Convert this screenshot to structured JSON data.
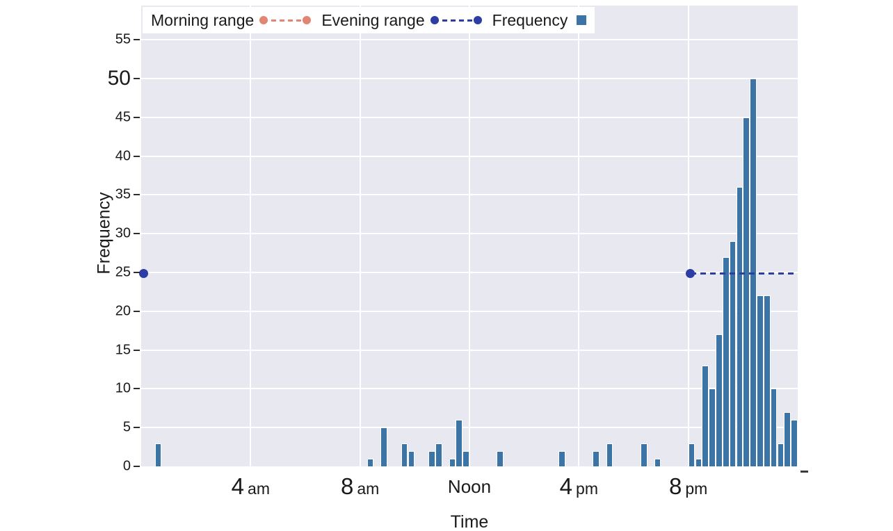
{
  "colors": {
    "figure_background": "#ffffff",
    "plot_background": "#e8e8f1",
    "grid": "#ffffff",
    "bar": "#3c74a6",
    "bar_edge": "#ffffff",
    "evening_range": "#2c3ea3",
    "morning_range": "#e28572",
    "text": "#1a1a1a"
  },
  "chart_data": {
    "type": "bar",
    "title": "",
    "xlabel": "Time",
    "ylabel": "Frequency",
    "grid": true,
    "legend_position": "top-left",
    "xlim_hours": [
      0,
      24
    ],
    "ylim": [
      0,
      59.4
    ],
    "bin_width_hours": 0.25,
    "y_ticks": [
      0,
      5,
      10,
      15,
      20,
      25,
      30,
      35,
      40,
      45,
      50,
      55
    ],
    "y_tick_emphasized": 50,
    "x_ticks": [
      {
        "hour": 4,
        "text": "4",
        "suffix": "am"
      },
      {
        "hour": 8,
        "text": "8",
        "suffix": "am"
      },
      {
        "hour": 12,
        "text": "Noon",
        "suffix": ""
      },
      {
        "hour": 16,
        "text": "4",
        "suffix": "pm"
      },
      {
        "hour": 20,
        "text": "8",
        "suffix": "pm"
      }
    ],
    "bars": [
      {
        "time": "00:30",
        "hour": 0.5,
        "value": 3
      },
      {
        "time": "08:15",
        "hour": 8.25,
        "value": 1
      },
      {
        "time": "08:45",
        "hour": 8.75,
        "value": 5
      },
      {
        "time": "09:30",
        "hour": 9.5,
        "value": 3
      },
      {
        "time": "09:45",
        "hour": 9.75,
        "value": 2
      },
      {
        "time": "10:30",
        "hour": 10.5,
        "value": 2
      },
      {
        "time": "10:45",
        "hour": 10.75,
        "value": 3
      },
      {
        "time": "11:15",
        "hour": 11.25,
        "value": 1
      },
      {
        "time": "11:30",
        "hour": 11.5,
        "value": 6
      },
      {
        "time": "11:45",
        "hour": 11.75,
        "value": 2
      },
      {
        "time": "13:00",
        "hour": 13,
        "value": 2
      },
      {
        "time": "15:15",
        "hour": 15.25,
        "value": 2
      },
      {
        "time": "16:30",
        "hour": 16.5,
        "value": 2
      },
      {
        "time": "17:00",
        "hour": 17,
        "value": 3
      },
      {
        "time": "18:15",
        "hour": 18.25,
        "value": 3
      },
      {
        "time": "18:45",
        "hour": 18.75,
        "value": 1
      },
      {
        "time": "20:00",
        "hour": 20,
        "value": 3
      },
      {
        "time": "20:15",
        "hour": 20.25,
        "value": 1
      },
      {
        "time": "20:30",
        "hour": 20.5,
        "value": 13
      },
      {
        "time": "20:45",
        "hour": 20.75,
        "value": 10
      },
      {
        "time": "21:00",
        "hour": 21,
        "value": 17
      },
      {
        "time": "21:15",
        "hour": 21.25,
        "value": 27
      },
      {
        "time": "21:30",
        "hour": 21.5,
        "value": 29
      },
      {
        "time": "21:45",
        "hour": 21.75,
        "value": 36
      },
      {
        "time": "22:00",
        "hour": 22,
        "value": 45
      },
      {
        "time": "22:15",
        "hour": 22.25,
        "value": 50
      },
      {
        "time": "22:30",
        "hour": 22.5,
        "value": 22
      },
      {
        "time": "22:45",
        "hour": 22.75,
        "value": 22
      },
      {
        "time": "23:00",
        "hour": 23,
        "value": 10
      },
      {
        "time": "23:15",
        "hour": 23.25,
        "value": 3
      },
      {
        "time": "23:30",
        "hour": 23.5,
        "value": 7
      },
      {
        "time": "23:45",
        "hour": 23.75,
        "value": 6
      }
    ],
    "evening_range": {
      "y": 24.9,
      "from_hour": 20.08,
      "to_hour": 24,
      "wrap_dot_hour": 0.08
    },
    "morning_range": {
      "visible_in_plot": false
    }
  },
  "legend": {
    "items": [
      {
        "label": "Morning range",
        "marker": "dashed-line-dots",
        "color": "#e28572",
        "name": "morning-range"
      },
      {
        "label": "Evening range",
        "marker": "dashed-line-dots",
        "color": "#2c3ea3",
        "name": "evening-range"
      },
      {
        "label": "Frequency",
        "marker": "square",
        "color": "#3c74a6",
        "name": "frequency"
      }
    ]
  }
}
